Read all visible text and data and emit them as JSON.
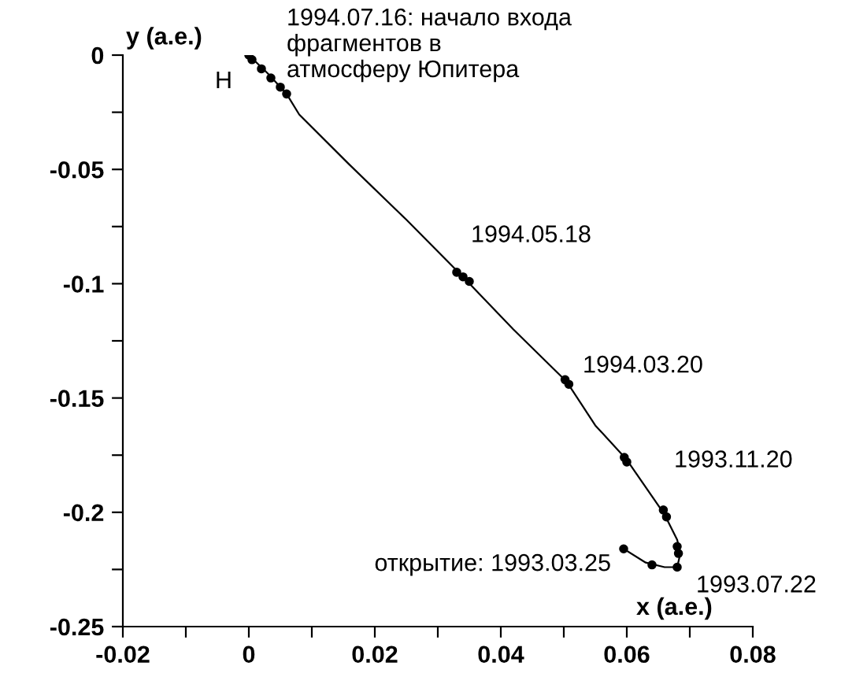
{
  "chart_data": {
    "type": "line",
    "xlabel": "x (а.е.)",
    "ylabel": "y (а.е.)",
    "xlim": [
      -0.02,
      0.08
    ],
    "ylim": [
      -0.25,
      0
    ],
    "xticks": [
      -0.02,
      {
        "value": -0.01,
        "label": null
      },
      0,
      {
        "value": 0.01,
        "label": null
      },
      0.02,
      {
        "value": 0.03,
        "label": null
      },
      0.04,
      {
        "value": 0.05,
        "label": null
      },
      0.06,
      {
        "value": 0.07,
        "label": null
      },
      0.08
    ],
    "yticks": [
      -0.25,
      {
        "value": -0.225,
        "label": null
      },
      -0.2,
      {
        "value": -0.175,
        "label": null
      },
      -0.15,
      {
        "value": -0.125,
        "label": null
      },
      -0.1,
      {
        "value": -0.075,
        "label": null
      },
      -0.05,
      {
        "value": -0.025,
        "label": null
      },
      0
    ],
    "grid": false,
    "legend": false,
    "series": [
      {
        "color": "#000000",
        "marker": "none",
        "x": [
          0.0595,
          0.063,
          0.066,
          0.068,
          0.0685,
          0.068,
          0.066,
          0.063,
          0.06,
          0.055,
          0.0505,
          0.042,
          0.034,
          0.025,
          0.016,
          0.008,
          0.006,
          0.003,
          0.0
        ],
        "values": [
          -0.216,
          -0.222,
          -0.224,
          -0.224,
          -0.218,
          -0.212,
          -0.201,
          -0.189,
          -0.177,
          -0.162,
          -0.143,
          -0.12,
          -0.097,
          -0.072,
          -0.048,
          -0.026,
          -0.017,
          -0.008,
          0.0
        ]
      },
      {
        "type": "scatter",
        "color": "#000000",
        "marker": "circle",
        "x": [
          0.0,
          0.0005,
          0.002,
          0.0035,
          0.005,
          0.006,
          0.033,
          0.034,
          0.035,
          0.0502,
          0.0508,
          0.0596,
          0.06,
          0.0658,
          0.0663,
          0.068,
          0.0682,
          0.068,
          0.064,
          0.0595
        ],
        "values": [
          0.0,
          -0.002,
          -0.006,
          -0.01,
          -0.014,
          -0.017,
          -0.095,
          -0.097,
          -0.099,
          -0.142,
          -0.144,
          -0.176,
          -0.178,
          -0.199,
          -0.202,
          -0.215,
          -0.218,
          -0.224,
          -0.223,
          -0.216
        ]
      }
    ],
    "annotations": [
      {
        "text": "1994.07.16: начало входа\nфрагментов в\nатмосферу Юпитера",
        "x": 0.0,
        "y": 0.0
      },
      {
        "text": "H",
        "x": 0.0,
        "y": 0.0
      },
      {
        "text": "1994.05.18",
        "x": 0.034,
        "y": -0.097
      },
      {
        "text": "1994.03.20",
        "x": 0.0505,
        "y": -0.143
      },
      {
        "text": "1993.11.20",
        "x": 0.066,
        "y": -0.201
      },
      {
        "text": "1993.07.22",
        "x": 0.068,
        "y": -0.224
      },
      {
        "text": "открытие: 1993.03.25",
        "x": 0.0595,
        "y": -0.216
      }
    ]
  }
}
